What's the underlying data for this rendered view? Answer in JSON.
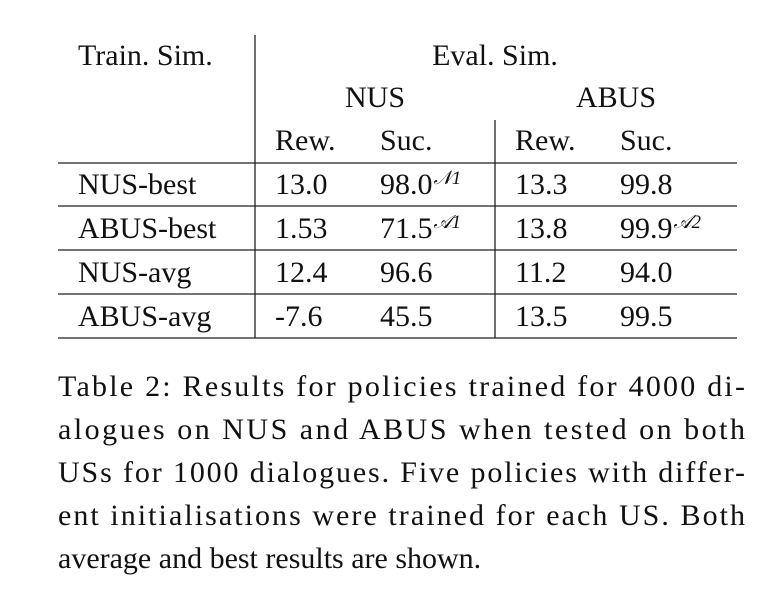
{
  "table": {
    "header": {
      "train": "Train. Sim.",
      "eval": "Eval. Sim.",
      "groups": [
        "NUS",
        "ABUS"
      ],
      "subcols": [
        "Rew.",
        "Suc.",
        "Rew.",
        "Suc."
      ]
    },
    "rows": [
      {
        "label": "NUS-best",
        "cells": [
          "13.0",
          {
            "value": "98.0",
            "sup": "𝒩1"
          },
          "13.3",
          "99.8"
        ]
      },
      {
        "label": "ABUS-best",
        "cells": [
          "1.53",
          {
            "value": "71.5",
            "sup": "𝒜1"
          },
          "13.8",
          {
            "value": "99.9",
            "sup": "𝒜2"
          }
        ]
      },
      {
        "label": "NUS-avg",
        "cells": [
          "12.4",
          "96.6",
          "11.2",
          "94.0"
        ]
      },
      {
        "label": "ABUS-avg",
        "cells": [
          "-7.6",
          "45.5",
          "13.5",
          "99.5"
        ]
      }
    ]
  },
  "caption": {
    "lines": [
      "Table 2: Results for policies trained for 4000 di-",
      "alogues on NUS and ABUS when tested on both",
      "USs for 1000 dialogues. Five policies with differ-",
      "ent initialisations were trained for each US. Both",
      "average and best results are shown."
    ]
  }
}
